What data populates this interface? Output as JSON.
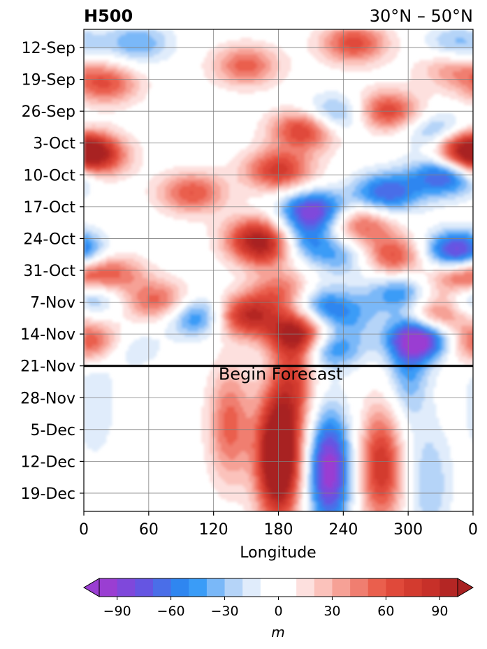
{
  "chart_data": {
    "type": "heatmap",
    "title_left": "H500",
    "title_right": "30°N – 50°N",
    "xlabel": "Longitude",
    "ylabel": "",
    "x_ticks": [
      "0",
      "60",
      "120",
      "180",
      "240",
      "300",
      "0"
    ],
    "x_tick_values": [
      0,
      60,
      120,
      180,
      240,
      300,
      360
    ],
    "xlim": [
      0,
      360
    ],
    "y_ticks": [
      "12-Sep",
      "19-Sep",
      "26-Sep",
      "3-Oct",
      "10-Oct",
      "17-Oct",
      "24-Oct",
      "31-Oct",
      "7-Nov",
      "14-Nov",
      "21-Nov",
      "28-Nov",
      "5-Dec",
      "12-Dec",
      "19-Dec"
    ],
    "y_order": "time increases downward",
    "grid": true,
    "annotation": {
      "text": "Begin Forecast",
      "date": "21-Nov",
      "longitude": 182
    },
    "colorbar": {
      "label": "m",
      "ticks": [
        "−90",
        "−60",
        "−30",
        "0",
        "30",
        "60",
        "90"
      ],
      "tick_values": [
        -90,
        -60,
        -30,
        0,
        30,
        60,
        90
      ],
      "levels": [
        -100,
        -90,
        -80,
        -70,
        -60,
        -50,
        -40,
        -30,
        -20,
        -10,
        10,
        20,
        30,
        40,
        50,
        60,
        70,
        80,
        90,
        100
      ],
      "colors": [
        "#9a3ed2",
        "#7f48db",
        "#6555e2",
        "#4a6ee8",
        "#2f86f0",
        "#3a9cf7",
        "#7ab8f8",
        "#b5d4f8",
        "#e0ecfb",
        "#ffffff",
        "#fde0de",
        "#fbc2bb",
        "#f6a196",
        "#f07e70",
        "#ea5f4d",
        "#e0493a",
        "#d33b2f",
        "#c73029",
        "#b42624"
      ],
      "extend_low_color": "#9a3ed2",
      "extend_high_color": "#a82020"
    },
    "anomaly_blobs": [
      {
        "lon": 20,
        "day": 12,
        "value": 60
      },
      {
        "lon": 150,
        "day": 8,
        "value": 55
      },
      {
        "lon": 205,
        "day": 22,
        "value": 80
      },
      {
        "lon": 250,
        "day": 3,
        "value": 65
      },
      {
        "lon": 280,
        "day": 18,
        "value": 70
      },
      {
        "lon": 340,
        "day": 8,
        "value": 45
      },
      {
        "lon": 8,
        "day": 28,
        "value": 85
      },
      {
        "lon": 350,
        "day": 26,
        "value": 90
      },
      {
        "lon": 100,
        "day": 36,
        "value": 60
      },
      {
        "lon": 180,
        "day": 31,
        "value": 75
      },
      {
        "lon": 160,
        "day": 45,
        "value": 55
      },
      {
        "lon": 25,
        "day": 54,
        "value": 55
      },
      {
        "lon": 70,
        "day": 60,
        "value": 60
      },
      {
        "lon": 170,
        "day": 48,
        "value": 85
      },
      {
        "lon": 255,
        "day": 43,
        "value": 60
      },
      {
        "lon": 285,
        "day": 50,
        "value": 70
      },
      {
        "lon": 150,
        "day": 63,
        "value": 90
      },
      {
        "lon": 200,
        "day": 67,
        "value": 85
      },
      {
        "lon": 185,
        "day": 58,
        "value": 60
      },
      {
        "lon": 325,
        "day": 63,
        "value": 65
      },
      {
        "lon": 8,
        "day": 69,
        "value": 80
      },
      {
        "lon": 350,
        "day": 55,
        "value": 85
      },
      {
        "lon": 195,
        "day": 75,
        "value": 60
      },
      {
        "lon": 180,
        "day": 90,
        "value": 70
      },
      {
        "lon": 180,
        "day": 97,
        "value": 90
      },
      {
        "lon": 275,
        "day": 96,
        "value": 80
      },
      {
        "lon": 135,
        "day": 87,
        "value": 55
      },
      {
        "lon": 50,
        "day": 3,
        "value": -40
      },
      {
        "lon": 232,
        "day": 19,
        "value": -55
      },
      {
        "lon": 330,
        "day": 23,
        "value": -55
      },
      {
        "lon": 345,
        "day": 4,
        "value": -45
      },
      {
        "lon": 280,
        "day": 36,
        "value": -70
      },
      {
        "lon": 335,
        "day": 32,
        "value": -80
      },
      {
        "lon": 212,
        "day": 40,
        "value": -90
      },
      {
        "lon": 245,
        "day": 50,
        "value": -40
      },
      {
        "lon": 200,
        "day": 47,
        "value": -65
      },
      {
        "lon": 345,
        "day": 49,
        "value": -95
      },
      {
        "lon": 2,
        "day": 58,
        "value": -70
      },
      {
        "lon": 210,
        "day": 60,
        "value": -55
      },
      {
        "lon": 290,
        "day": 58,
        "value": -45
      },
      {
        "lon": 105,
        "day": 63,
        "value": -65
      },
      {
        "lon": 240,
        "day": 63,
        "value": -40
      },
      {
        "lon": 315,
        "day": 68,
        "value": -95
      },
      {
        "lon": 227,
        "day": 70,
        "value": -60
      },
      {
        "lon": 35,
        "day": 70,
        "value": -35
      },
      {
        "lon": 300,
        "day": 73,
        "value": -45
      },
      {
        "lon": 227,
        "day": 97,
        "value": -100
      },
      {
        "lon": 10,
        "day": 82,
        "value": -20
      },
      {
        "lon": 320,
        "day": 100,
        "value": -30
      }
    ]
  }
}
